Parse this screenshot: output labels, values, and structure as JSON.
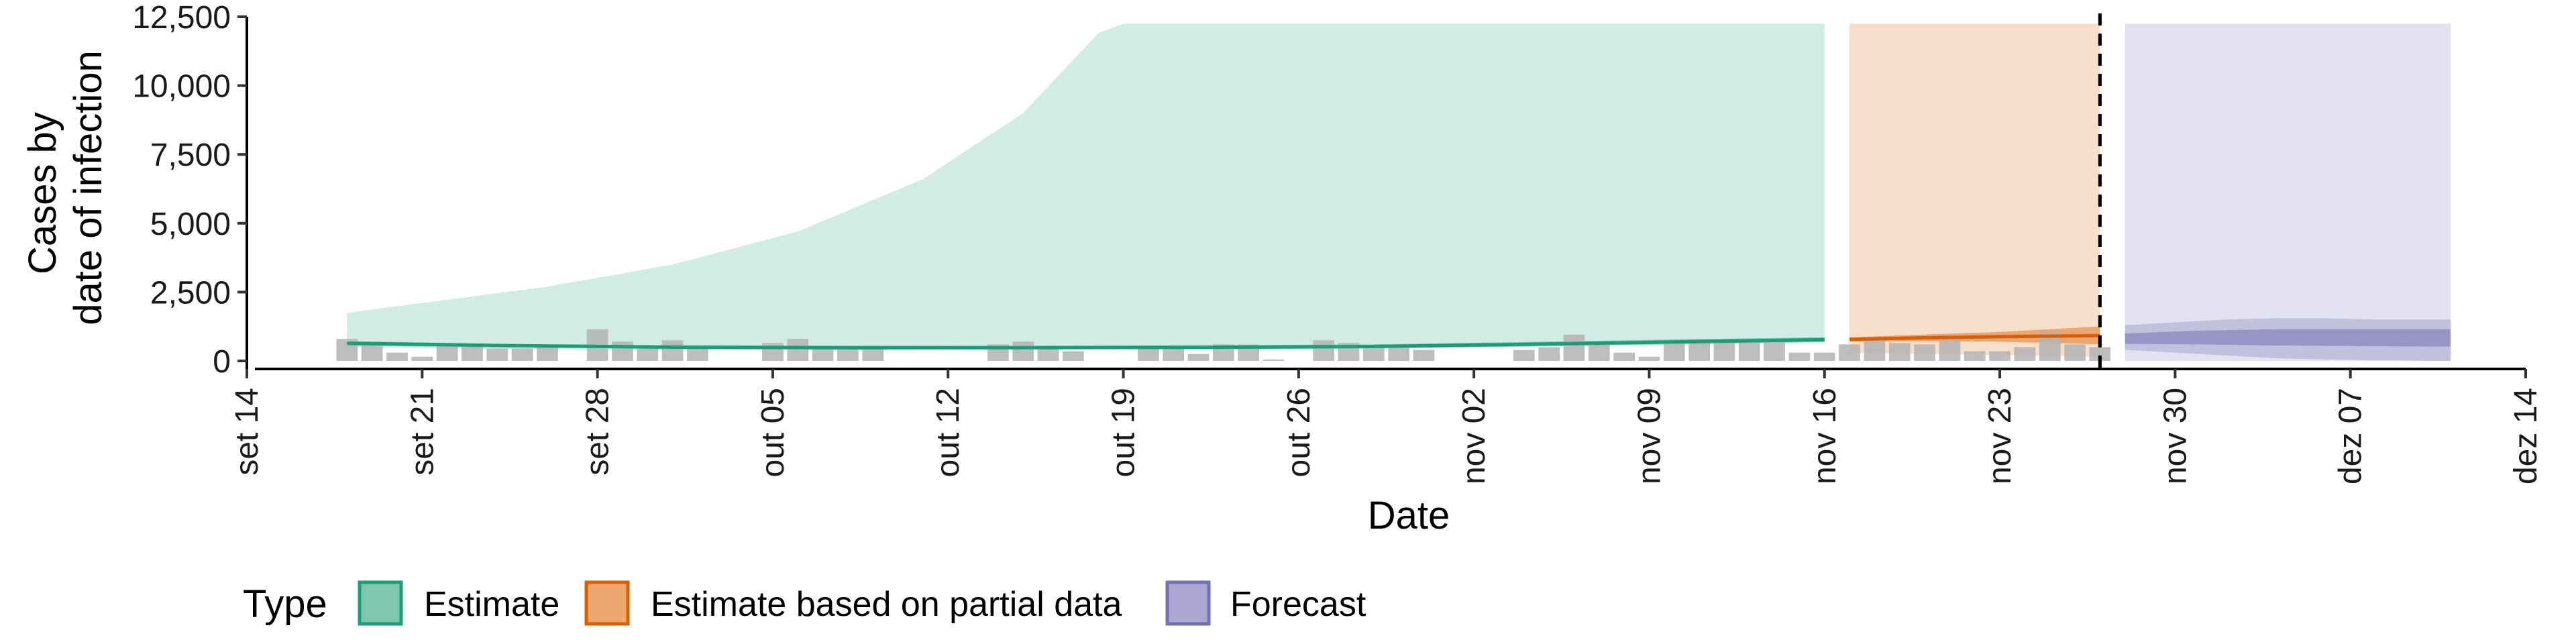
{
  "chart_data": {
    "type": "area",
    "xlabel": "Date",
    "ylabel": [
      "Cases by",
      "date of infection"
    ],
    "xlim": [
      "2020-09-14",
      "2020-12-14"
    ],
    "ylim": [
      0,
      12500
    ],
    "x_ticks": [
      {
        "date": "2020-09-14",
        "label": "set 14"
      },
      {
        "date": "2020-09-21",
        "label": "set 21"
      },
      {
        "date": "2020-09-28",
        "label": "set 28"
      },
      {
        "date": "2020-10-05",
        "label": "out 05"
      },
      {
        "date": "2020-10-12",
        "label": "out 12"
      },
      {
        "date": "2020-10-19",
        "label": "out 19"
      },
      {
        "date": "2020-10-26",
        "label": "out 26"
      },
      {
        "date": "2020-11-02",
        "label": "nov 02"
      },
      {
        "date": "2020-11-09",
        "label": "nov 09"
      },
      {
        "date": "2020-11-16",
        "label": "nov 16"
      },
      {
        "date": "2020-11-23",
        "label": "nov 23"
      },
      {
        "date": "2020-11-30",
        "label": "nov 30"
      },
      {
        "date": "2020-12-07",
        "label": "dez 07"
      },
      {
        "date": "2020-12-14",
        "label": "dez 14"
      }
    ],
    "y_ticks": [
      {
        "value": 0,
        "label": "0"
      },
      {
        "value": 2500,
        "label": "2,500"
      },
      {
        "value": 5000,
        "label": "5,000"
      },
      {
        "value": 7500,
        "label": "7,500"
      },
      {
        "value": 10000,
        "label": "10,000"
      },
      {
        "value": 12500,
        "label": "12,500"
      }
    ],
    "grid": false,
    "vline_date": "2020-11-27",
    "legend": {
      "title": "Type",
      "position": "bottom",
      "entries": [
        {
          "label": "Estimate",
          "fill": "#7fc8ae",
          "stroke": "#1b9e77"
        },
        {
          "label": "Estimate based on partial data",
          "fill": "#eda66d",
          "stroke": "#d95f02"
        },
        {
          "label": "Forecast",
          "fill": "#aaa6d0",
          "stroke": "#7570b3"
        }
      ]
    },
    "bars": {
      "color": "#b3b3b3",
      "dates": [
        "2020-09-18",
        "2020-09-19",
        "2020-09-20",
        "2020-09-21",
        "2020-09-22",
        "2020-09-23",
        "2020-09-24",
        "2020-09-25",
        "2020-09-26",
        "2020-09-27",
        "2020-09-28",
        "2020-09-29",
        "2020-09-30",
        "2020-10-01",
        "2020-10-02",
        "2020-10-03",
        "2020-10-04",
        "2020-10-05",
        "2020-10-06",
        "2020-10-07",
        "2020-10-08",
        "2020-10-09",
        "2020-10-10",
        "2020-10-11",
        "2020-10-12",
        "2020-10-13",
        "2020-10-14",
        "2020-10-15",
        "2020-10-16",
        "2020-10-17",
        "2020-10-18",
        "2020-10-19",
        "2020-10-20",
        "2020-10-21",
        "2020-10-22",
        "2020-10-23",
        "2020-10-24",
        "2020-10-25",
        "2020-10-26",
        "2020-10-27",
        "2020-10-28",
        "2020-10-29",
        "2020-10-30",
        "2020-10-31",
        "2020-11-01",
        "2020-11-02",
        "2020-11-03",
        "2020-11-04",
        "2020-11-05",
        "2020-11-06",
        "2020-11-07",
        "2020-11-08",
        "2020-11-09",
        "2020-11-10",
        "2020-11-11",
        "2020-11-12",
        "2020-11-13",
        "2020-11-14",
        "2020-11-15",
        "2020-11-16",
        "2020-11-17",
        "2020-11-18",
        "2020-11-19",
        "2020-11-20",
        "2020-11-21",
        "2020-11-22",
        "2020-11-23",
        "2020-11-24",
        "2020-11-25",
        "2020-11-26",
        "2020-11-27"
      ],
      "values": [
        800,
        700,
        300,
        150,
        600,
        550,
        450,
        450,
        550,
        0,
        1150,
        700,
        550,
        750,
        500,
        0,
        0,
        650,
        800,
        550,
        550,
        500,
        0,
        0,
        0,
        0,
        600,
        700,
        550,
        350,
        0,
        0,
        550,
        550,
        250,
        600,
        600,
        50,
        0,
        750,
        650,
        550,
        550,
        400,
        0,
        0,
        0,
        400,
        500,
        950,
        650,
        300,
        150,
        650,
        800,
        750,
        750,
        800,
        300,
        300,
        600,
        800,
        650,
        600,
        750,
        350,
        350,
        500,
        1050,
        600,
        500
      ]
    },
    "series": [
      {
        "name": "Estimate",
        "bands": [
          {
            "color": "#1b9e77",
            "opacity": 0.2,
            "dates": [
              "2020-09-18",
              "2020-09-21",
              "2020-09-26",
              "2020-10-01",
              "2020-10-06",
              "2020-10-11",
              "2020-10-15",
              "2020-10-18",
              "2020-10-19",
              "2020-11-16"
            ],
            "lower": [
              500,
              460,
              420,
              400,
              390,
              400,
              420,
              450,
              460,
              800
            ],
            "upper": [
              1750,
              2100,
              2700,
              3500,
              4700,
              6600,
              9000,
              11900,
              12250,
              12250
            ]
          },
          {
            "color": "#1b9e77",
            "opacity": 0.45,
            "dates": [
              "2020-09-18",
              "2020-09-24",
              "2020-10-01",
              "2020-10-08",
              "2020-10-15",
              "2020-10-22",
              "2020-10-29",
              "2020-11-05",
              "2020-11-10",
              "2020-11-16"
            ],
            "lower": [
              560,
              500,
              440,
              420,
              420,
              430,
              450,
              530,
              600,
              680
            ],
            "upper": [
              720,
              620,
              560,
              540,
              540,
              560,
              600,
              700,
              780,
              860
            ]
          }
        ],
        "line": {
          "color": "#1b9e77",
          "dates": [
            "2020-09-18",
            "2020-09-24",
            "2020-10-01",
            "2020-10-08",
            "2020-10-15",
            "2020-10-22",
            "2020-10-29",
            "2020-11-05",
            "2020-11-10",
            "2020-11-16"
          ],
          "values": [
            640,
            560,
            500,
            480,
            480,
            495,
            525,
            615,
            690,
            770
          ]
        }
      },
      {
        "name": "Estimate based on partial data",
        "bands": [
          {
            "color": "#d95f02",
            "opacity": 0.2,
            "dates": [
              "2020-11-17",
              "2020-11-27"
            ],
            "lower": [
              300,
              150
            ],
            "upper": [
              12250,
              12250
            ]
          },
          {
            "color": "#d95f02",
            "opacity": 0.45,
            "dates": [
              "2020-11-17",
              "2020-11-20",
              "2020-11-23",
              "2020-11-25",
              "2020-11-27"
            ],
            "lower": [
              700,
              720,
              700,
              650,
              600
            ],
            "upper": [
              860,
              960,
              1050,
              1150,
              1250
            ]
          }
        ],
        "line": {
          "color": "#d95f02",
          "dates": [
            "2020-11-17",
            "2020-11-20",
            "2020-11-23",
            "2020-11-25",
            "2020-11-27"
          ],
          "values": [
            780,
            840,
            880,
            900,
            920
          ]
        }
      },
      {
        "name": "Forecast",
        "bands": [
          {
            "color": "#7570b3",
            "opacity": 0.2,
            "dates": [
              "2020-11-28",
              "2020-12-11"
            ],
            "lower": [
              0,
              0
            ],
            "upper": [
              12250,
              12250
            ]
          },
          {
            "color": "#7570b3",
            "opacity": 0.3,
            "dates": [
              "2020-11-28",
              "2020-11-30",
              "2020-12-02",
              "2020-12-04",
              "2020-12-06",
              "2020-12-08",
              "2020-12-11"
            ],
            "lower": [
              400,
              300,
              200,
              100,
              50,
              20,
              0
            ],
            "upper": [
              1300,
              1400,
              1500,
              1550,
              1550,
              1500,
              1500
            ]
          },
          {
            "color": "#7570b3",
            "opacity": 0.55,
            "dates": [
              "2020-11-28",
              "2020-12-01",
              "2020-12-04",
              "2020-12-07",
              "2020-12-11"
            ],
            "lower": [
              620,
              600,
              560,
              540,
              520
            ],
            "upper": [
              1000,
              1100,
              1150,
              1150,
              1150
            ]
          }
        ]
      }
    ]
  }
}
